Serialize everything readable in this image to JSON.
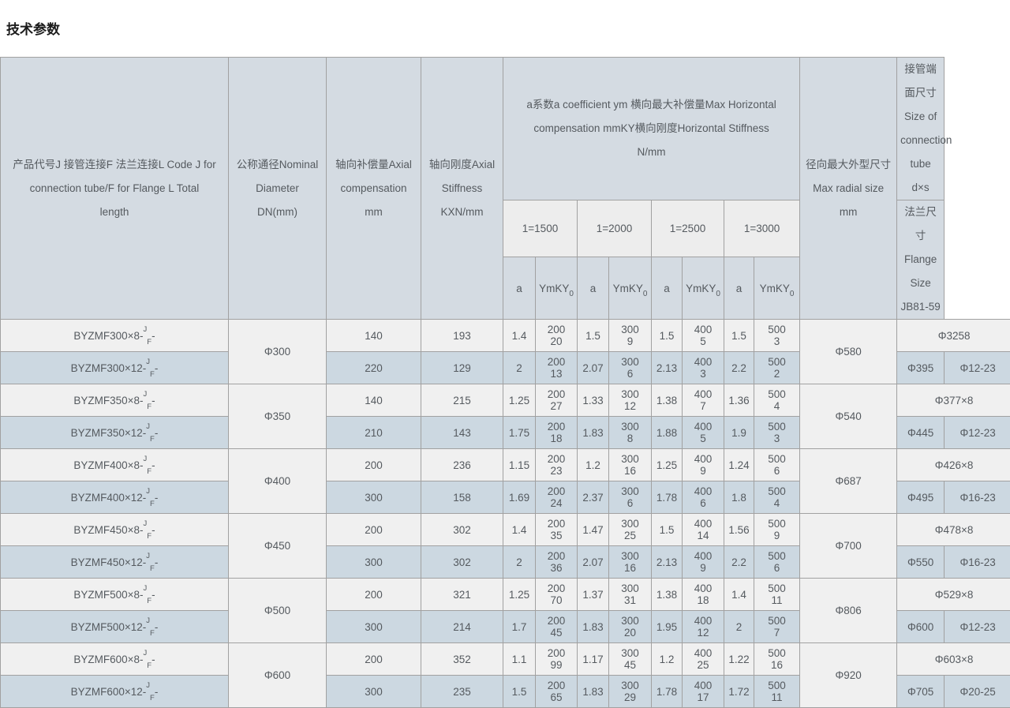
{
  "title": "技术参数",
  "colors": {
    "header-bg": "#d4dbe2",
    "subheader-bg": "#ededed",
    "row-light": "#f0f0f0",
    "row-blue": "#ccd8e1",
    "border": "#a1a1a1",
    "text": "#555a5f",
    "title": "#1b1b1b",
    "page-bg": "#ffffff"
  },
  "table": {
    "headers": {
      "col_product": "产品代号J 接管连接F 法兰连接L Code J for\nconnection tube/F for Flange L Total\nlength",
      "col_dn": "公称通径Nominal\nDiameter\nDN(mm)",
      "col_comp": "轴向补偿量Axial\ncompensation\nmm",
      "col_stiff": "轴向刚度Axial\nStiffness\nKXN/mm",
      "col_group": "a系数a coefficient ym 横向最大补偿量Max Horizontal\ncompensation mmKY横向刚度Horizontal Stiffness\nN/mm",
      "group_cols": [
        "1=1500",
        "1=2000",
        "1=2500",
        "1=3000"
      ],
      "sub_a": "a",
      "sub_ym": {
        "base": "YmKY",
        "sub": "0"
      },
      "col_radial": "径向最大外型尺寸\nMax radial size\nmm",
      "col_tube": "接管端面尺寸Size of\nconnection tube d×s",
      "col_flange": "法兰尺寸Flange Size\nJB81-59"
    },
    "groups": [
      {
        "dn": "Φ300",
        "radial": "Φ580",
        "tube": "Φ3258",
        "rows": [
          {
            "code": {
              "base": "BYZMF300×8-",
              "sup": "J",
              "sub": "F",
              "tail": "-"
            },
            "comp": "140",
            "stiff": "193",
            "vals": [
              "1.4",
              [
                "200",
                "20"
              ],
              "1.5",
              [
                "300",
                "9"
              ],
              "1.5",
              [
                "400",
                "5"
              ],
              "1.5",
              [
                "500",
                "3"
              ]
            ]
          },
          {
            "code": {
              "base": "BYZMF300×12-",
              "sup": "J",
              "sub": "F",
              "tail": "-"
            },
            "comp": "220",
            "stiff": "129",
            "vals": [
              "2",
              [
                "200",
                "13"
              ],
              "2.07",
              [
                "300",
                "6"
              ],
              "2.13",
              [
                "400",
                "3"
              ],
              "2.2",
              [
                "500",
                "2"
              ]
            ],
            "flange": [
              "Φ395",
              "Φ12-23"
            ]
          }
        ]
      },
      {
        "dn": "Φ350",
        "radial": "Φ540",
        "tube": "Φ377×8",
        "rows": [
          {
            "code": {
              "base": "BYZMF350×8-",
              "sup": "J",
              "sub": "F",
              "tail": "-"
            },
            "comp": "140",
            "stiff": "215",
            "vals": [
              "1.25",
              [
                "200",
                "27"
              ],
              "1.33",
              [
                "300",
                "12"
              ],
              "1.38",
              [
                "400",
                "7"
              ],
              "1.36",
              [
                "500",
                "4"
              ]
            ]
          },
          {
            "code": {
              "base": "BYZMF350×12-",
              "sup": "J",
              "sub": "F",
              "tail": "-"
            },
            "comp": "210",
            "stiff": "143",
            "vals": [
              "1.75",
              [
                "200",
                "18"
              ],
              "1.83",
              [
                "300",
                "8"
              ],
              "1.88",
              [
                "400",
                "5"
              ],
              "1.9",
              [
                "500",
                "3"
              ]
            ],
            "flange": [
              "Φ445",
              "Φ12-23"
            ]
          }
        ]
      },
      {
        "dn": "Φ400",
        "radial": "Φ687",
        "tube": "Φ426×8",
        "rows": [
          {
            "code": {
              "base": "BYZMF400×8-",
              "sup": "J",
              "sub": "F",
              "tail": "-"
            },
            "comp": "200",
            "stiff": "236",
            "vals": [
              "1.15",
              [
                "200",
                "23"
              ],
              "1.2",
              [
                "300",
                "16"
              ],
              "1.25",
              [
                "400",
                "9"
              ],
              "1.24",
              [
                "500",
                "6"
              ]
            ]
          },
          {
            "code": {
              "base": "BYZMF400×12-",
              "sup": "J",
              "sub": "F",
              "tail": "-"
            },
            "comp": "300",
            "stiff": "158",
            "vals": [
              "1.69",
              [
                "200",
                "24"
              ],
              "2.37",
              [
                "300",
                "6"
              ],
              "1.78",
              [
                "400",
                "6"
              ],
              "1.8",
              [
                "500",
                "4"
              ]
            ],
            "flange": [
              "Φ495",
              "Φ16-23"
            ]
          }
        ]
      },
      {
        "dn": "Φ450",
        "radial": "Φ700",
        "tube": "Φ478×8",
        "rows": [
          {
            "code": {
              "base": "BYZMF450×8-",
              "sup": "J",
              "sub": "F",
              "tail": "-"
            },
            "comp": "200",
            "stiff": "302",
            "vals": [
              "1.4",
              [
                "200",
                "35"
              ],
              "1.47",
              [
                "300",
                "25"
              ],
              "1.5",
              [
                "400",
                "14"
              ],
              "1.56",
              [
                "500",
                "9"
              ]
            ]
          },
          {
            "code": {
              "base": "BYZMF450×12-",
              "sup": "J",
              "sub": "F",
              "tail": "-"
            },
            "comp": "300",
            "stiff": "302",
            "vals": [
              "2",
              [
                "200",
                "36"
              ],
              "2.07",
              [
                "300",
                "16"
              ],
              "2.13",
              [
                "400",
                "9"
              ],
              "2.2",
              [
                "500",
                "6"
              ]
            ],
            "flange": [
              "Φ550",
              "Φ16-23"
            ]
          }
        ]
      },
      {
        "dn": "Φ500",
        "radial": "Φ806",
        "tube": "Φ529×8",
        "rows": [
          {
            "code": {
              "base": "BYZMF500×8-",
              "sup": "J",
              "sub": "F",
              "tail": "-"
            },
            "comp": "200",
            "stiff": "321",
            "vals": [
              "1.25",
              [
                "200",
                "70"
              ],
              "1.37",
              [
                "300",
                "31"
              ],
              "1.38",
              [
                "400",
                "18"
              ],
              "1.4",
              [
                "500",
                "11"
              ]
            ]
          },
          {
            "code": {
              "base": "BYZMF500×12-",
              "sup": "J",
              "sub": "F",
              "tail": "-"
            },
            "comp": "300",
            "stiff": "214",
            "vals": [
              "1.7",
              [
                "200",
                "45"
              ],
              "1.83",
              [
                "300",
                "20"
              ],
              "1.95",
              [
                "400",
                "12"
              ],
              "2",
              [
                "500",
                "7"
              ]
            ],
            "flange": [
              "Φ600",
              "Φ12-23"
            ]
          }
        ]
      },
      {
        "dn": "Φ600",
        "radial": "Φ920",
        "tube": "Φ603×8",
        "rows": [
          {
            "code": {
              "base": "BYZMF600×8-",
              "sup": "J",
              "sub": "F",
              "tail": "-"
            },
            "comp": "200",
            "stiff": "352",
            "vals": [
              "1.1",
              [
                "200",
                "99"
              ],
              "1.17",
              [
                "300",
                "45"
              ],
              "1.2",
              [
                "400",
                "25"
              ],
              "1.22",
              [
                "500",
                "16"
              ]
            ]
          },
          {
            "code": {
              "base": "BYZMF600×12-",
              "sup": "J",
              "sub": "F",
              "tail": "-"
            },
            "comp": "300",
            "stiff": "235",
            "vals": [
              "1.5",
              [
                "200",
                "65"
              ],
              "1.83",
              [
                "300",
                "29"
              ],
              "1.78",
              [
                "400",
                "17"
              ],
              "1.72",
              [
                "500",
                "11"
              ]
            ],
            "flange": [
              "Φ705",
              "Φ20-25"
            ]
          }
        ]
      }
    ]
  }
}
